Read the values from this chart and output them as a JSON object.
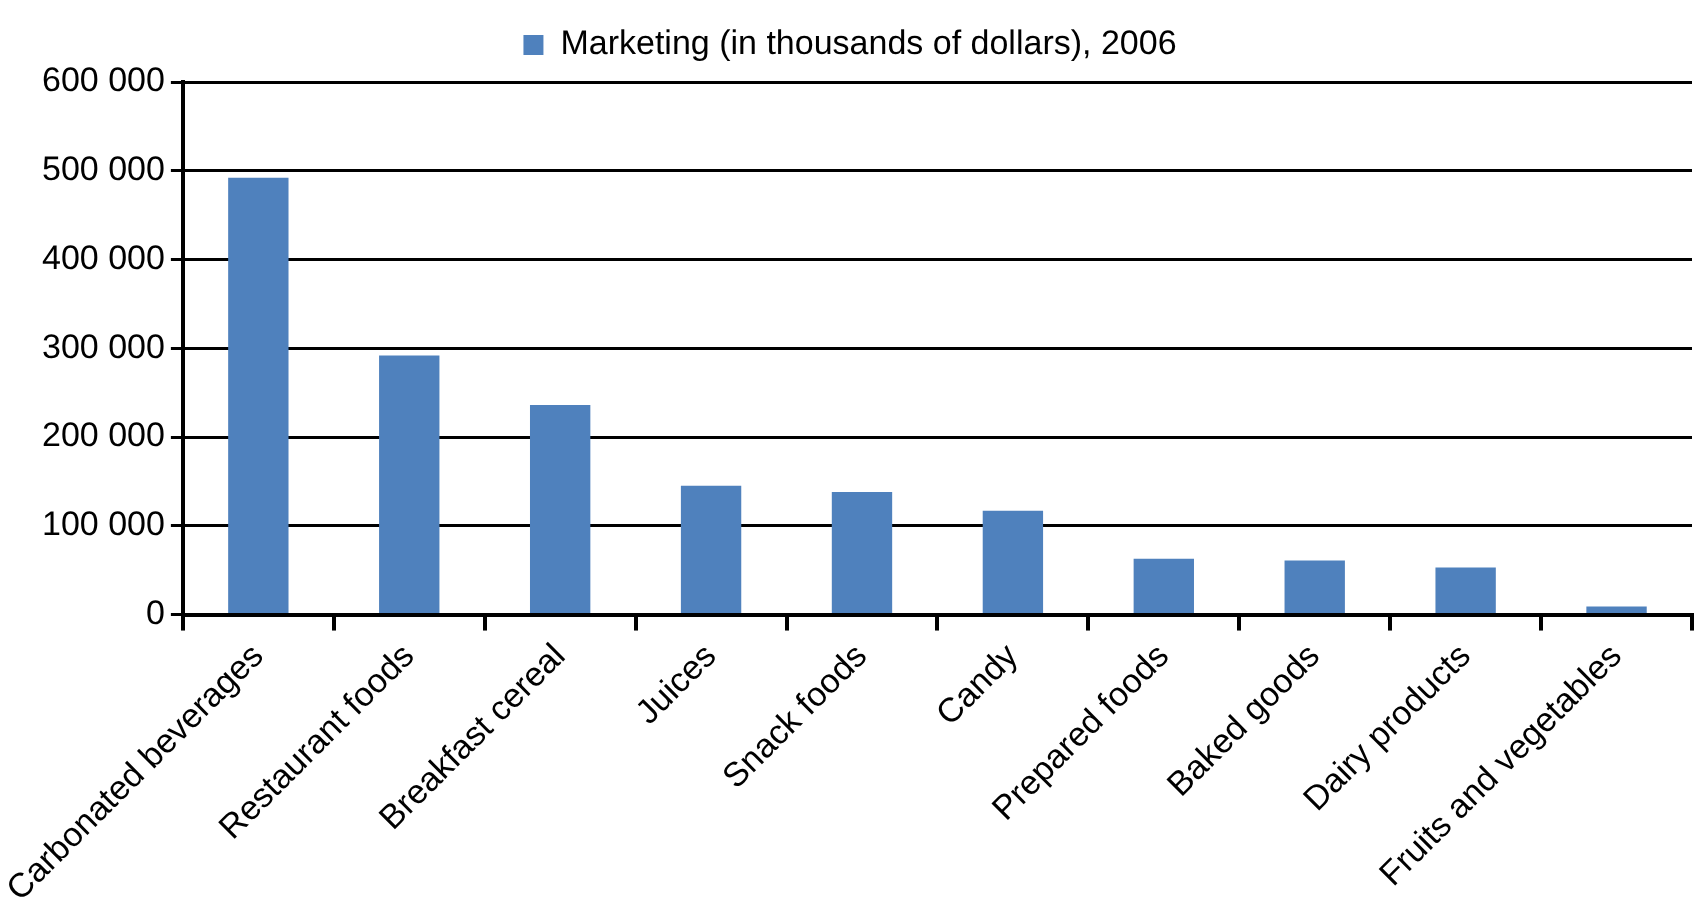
{
  "chart_data": {
    "type": "bar",
    "categories": [
      "Carbonated beverages",
      "Restaurant foods",
      "Breakfast cereal",
      "Juices",
      "Snack foods",
      "Candy",
      "Prepared foods",
      "Baked goods",
      "Dairy products",
      "Fruits and vegetables"
    ],
    "series": [
      {
        "name": "Marketing (in thousands of dollars), 2006",
        "color": "#4f81bd",
        "values": [
          492000,
          292000,
          236000,
          145000,
          138000,
          117000,
          63000,
          61000,
          53000,
          9000
        ]
      }
    ],
    "ylim": [
      0,
      600000
    ],
    "yticks": [
      0,
      {
        "value": 100000,
        "label": "100 000"
      },
      {
        "value": 200000,
        "label": "200 000"
      },
      {
        "value": 300000,
        "label": "300 000"
      },
      {
        "value": 400000,
        "label": "400 000"
      },
      {
        "value": 500000,
        "label": "500 000"
      },
      {
        "value": 600000,
        "label": "600 000"
      }
    ],
    "grid": "y",
    "legend": "top"
  }
}
